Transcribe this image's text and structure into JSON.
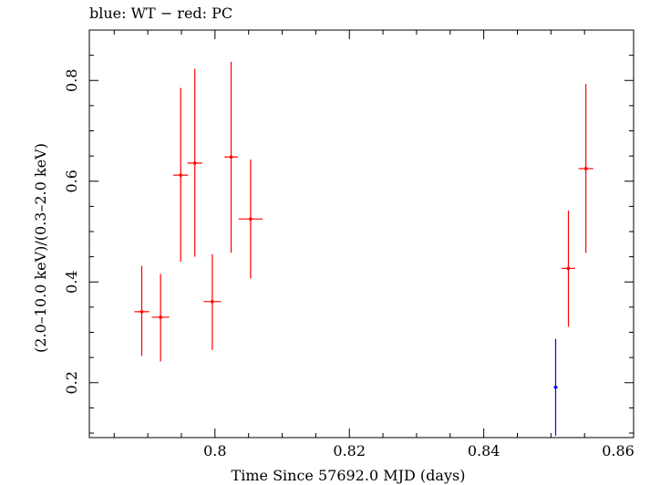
{
  "chart_data": {
    "type": "scatter",
    "title": "blue: WT − red: PC",
    "xlabel": "Time Since 57692.0 MJD (days)",
    "ylabel": "(2.0–10.0 keV)/(0.3–2.0 keV)",
    "xlim": [
      0.7813,
      0.8623
    ],
    "ylim": [
      0.091,
      0.9
    ],
    "x_ticks": [
      0.8,
      0.82,
      0.84,
      0.86
    ],
    "x_tick_labels": [
      "0.8",
      "0.82",
      "0.84",
      "0.86"
    ],
    "y_ticks": [
      0.2,
      0.4,
      0.6,
      0.8
    ],
    "y_tick_labels": [
      "0.2",
      "0.4",
      "0.6",
      "0.8"
    ],
    "grid": false,
    "series": [
      {
        "color": "#ff0000",
        "points": [
          {
            "x": 0.7891,
            "y": 0.341,
            "xerr": 0.0011,
            "ylo": 0.253,
            "yhi": 0.432
          },
          {
            "x": 0.7919,
            "y": 0.33,
            "xerr": 0.0013,
            "ylo": 0.242,
            "yhi": 0.416
          },
          {
            "x": 0.7949,
            "y": 0.612,
            "xerr": 0.0011,
            "ylo": 0.44,
            "yhi": 0.785
          },
          {
            "x": 0.797,
            "y": 0.636,
            "xerr": 0.0011,
            "ylo": 0.45,
            "yhi": 0.823
          },
          {
            "x": 0.7996,
            "y": 0.361,
            "xerr": 0.0013,
            "ylo": 0.265,
            "yhi": 0.455
          },
          {
            "x": 0.8024,
            "y": 0.648,
            "xerr": 0.001,
            "ylo": 0.458,
            "yhi": 0.837
          },
          {
            "x": 0.8053,
            "y": 0.525,
            "xerr": 0.0018,
            "ylo": 0.407,
            "yhi": 0.643
          },
          {
            "x": 0.8526,
            "y": 0.427,
            "xerr": 0.001,
            "ylo": 0.311,
            "yhi": 0.542
          },
          {
            "x": 0.8552,
            "y": 0.625,
            "xerr": 0.0011,
            "ylo": 0.458,
            "yhi": 0.793
          }
        ]
      },
      {
        "color": "#0000ff",
        "points": [
          {
            "x": 0.8507,
            "y": 0.191,
            "xerr": 0.0003,
            "ylo": 0.095,
            "yhi": 0.287
          }
        ]
      }
    ]
  }
}
